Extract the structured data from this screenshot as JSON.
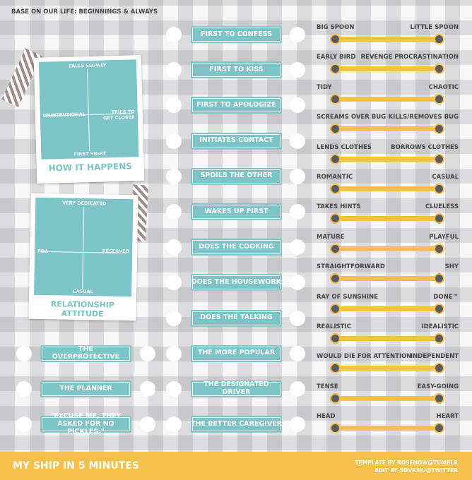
{
  "header": {
    "title": "BASE ON OUR LIFE: BEGINNINGS & ALWAYS"
  },
  "quadrants": [
    {
      "title": "HOW IT HAPPENS",
      "top": "FALLS SLOWLY",
      "bottom": "FIRST SIGHT",
      "left": "UNINTENTIONAL",
      "right": "TRIES TO GET CLOSER"
    },
    {
      "title": "RELATIONSHIP ATTITUDE",
      "top": "VERY DEDICATED",
      "bottom": "CASUAL",
      "left": "PDA",
      "right": "RESERVED"
    }
  ],
  "middle": [
    "FIRST TO CONFESS",
    "FIRST TO KISS",
    "FIRST TO APOLOGIZE",
    "INITIATES CONTACT",
    "SPOILS THE OTHER",
    "WAKES UP FIRST",
    "DOES THE COOKING",
    "DOES THE HOUSEWORK",
    "DOES THE TALKING",
    "THE MORE POPULAR",
    "THE DESIGNATED DRIVER",
    "THE BETTER CAREGIVER"
  ],
  "left_extra": [
    "THE OVERPROTECTIVE",
    "THE PLANNER",
    "\"EXCUSE ME, THEY ASKED FOR NO PICKLES.\""
  ],
  "sliders": [
    [
      "BIG SPOON",
      "LITTLE SPOON"
    ],
    [
      "EARLY BIRD",
      "REVENGE PROCRASTINATION"
    ],
    [
      "TIDY",
      "CHAOTIC"
    ],
    [
      "SCREAMS OVER BUG",
      "KILLS/REMOVES BUG"
    ],
    [
      "LENDS CLOTHES",
      "BORROWS CLOTHES"
    ],
    [
      "ROMANTIC",
      "CASUAL"
    ],
    [
      "TAKES HINTS",
      "CLUELESS"
    ],
    [
      "MATURE",
      "PLAYFUL"
    ],
    [
      "STRAIGHTFORWARD",
      "SHY"
    ],
    [
      "RAY OF SUNSHINE",
      "DONE™"
    ],
    [
      "REALISTIC",
      "IDEALISTIC"
    ],
    [
      "WOULD DIE FOR ATTENTION",
      "INDEPENDENT"
    ],
    [
      "TENSE",
      "EASY-GOING"
    ],
    [
      "HEAD",
      "HEART"
    ]
  ],
  "footer": {
    "title": "MY SHIP IN 5 MINUTES",
    "credits": [
      "TEMPLATE BY ROSENOW@TUMBLR",
      "EDIT BY SDVR3IU@TWITTER"
    ]
  }
}
